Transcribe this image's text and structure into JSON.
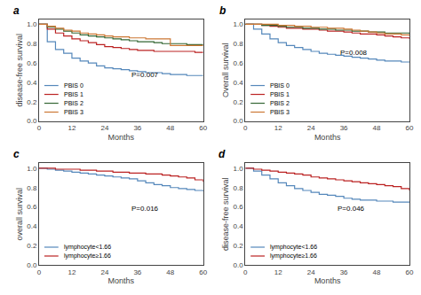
{
  "chart_data": [
    {
      "type": "step",
      "title": "a",
      "xlabel": "Months",
      "ylabel": "disease-free survival",
      "x": [
        0,
        3,
        6,
        9,
        12,
        15,
        18,
        21,
        24,
        27,
        30,
        33,
        36,
        39,
        42,
        45,
        48,
        51,
        54,
        57,
        60
      ],
      "series": [
        {
          "name": "PBIS 0",
          "color": "#5588BB",
          "values": [
            1.0,
            0.82,
            0.74,
            0.7,
            0.65,
            0.62,
            0.6,
            0.57,
            0.55,
            0.54,
            0.53,
            0.52,
            0.51,
            0.5,
            0.5,
            0.49,
            0.48,
            0.48,
            0.47,
            0.47,
            0.47
          ]
        },
        {
          "name": "PBIS 1",
          "color": "#BB2222",
          "values": [
            1.0,
            0.95,
            0.91,
            0.88,
            0.85,
            0.83,
            0.81,
            0.79,
            0.77,
            0.76,
            0.75,
            0.74,
            0.73,
            0.73,
            0.72,
            0.72,
            0.72,
            0.72,
            0.72,
            0.71,
            0.71
          ]
        },
        {
          "name": "PBIS 2",
          "color": "#336633",
          "values": [
            1.0,
            0.97,
            0.95,
            0.93,
            0.91,
            0.89,
            0.88,
            0.87,
            0.86,
            0.85,
            0.84,
            0.83,
            0.82,
            0.82,
            0.81,
            0.8,
            0.8,
            0.8,
            0.79,
            0.79,
            0.79
          ]
        },
        {
          "name": "PBIS 3",
          "color": "#CC7733",
          "values": [
            1.0,
            0.98,
            0.96,
            0.94,
            0.93,
            0.91,
            0.9,
            0.89,
            0.88,
            0.87,
            0.87,
            0.86,
            0.86,
            0.85,
            0.85,
            0.85,
            0.78,
            0.78,
            0.78,
            0.78,
            0.78
          ]
        }
      ],
      "xlim": [
        0,
        60
      ],
      "ylim": [
        0.0,
        1.05
      ],
      "xticks": [
        0,
        12,
        24,
        36,
        48,
        60
      ],
      "yticks": [
        {
          "value": 0,
          "label": "0.0"
        },
        0.2,
        0.4,
        0.6,
        0.8,
        {
          "value": 1,
          "label": "1.0"
        }
      ],
      "grid": false,
      "legend": "lower left",
      "annotations": [
        {
          "text": "P=0.007",
          "x": 33,
          "y": 0.42
        }
      ]
    },
    {
      "type": "step",
      "title": "b",
      "xlabel": "Months",
      "ylabel": "Overall survival",
      "x": [
        0,
        3,
        6,
        9,
        12,
        15,
        18,
        21,
        24,
        27,
        30,
        33,
        36,
        39,
        42,
        45,
        48,
        51,
        54,
        57,
        60
      ],
      "series": [
        {
          "name": "PBIS 0",
          "color": "#5588BB",
          "values": [
            1.0,
            0.95,
            0.9,
            0.85,
            0.81,
            0.78,
            0.76,
            0.74,
            0.72,
            0.7,
            0.69,
            0.68,
            0.67,
            0.66,
            0.65,
            0.64,
            0.63,
            0.62,
            0.62,
            0.61,
            0.61
          ]
        },
        {
          "name": "PBIS 1",
          "color": "#BB2222",
          "values": [
            1.0,
            1.0,
            0.99,
            0.98,
            0.97,
            0.96,
            0.96,
            0.95,
            0.95,
            0.94,
            0.93,
            0.93,
            0.92,
            0.91,
            0.9,
            0.9,
            0.89,
            0.88,
            0.87,
            0.86,
            0.85
          ]
        },
        {
          "name": "PBIS 2",
          "color": "#336633",
          "values": [
            1.0,
            1.0,
            0.99,
            0.99,
            0.98,
            0.97,
            0.97,
            0.96,
            0.96,
            0.95,
            0.95,
            0.94,
            0.94,
            0.93,
            0.93,
            0.92,
            0.92,
            0.91,
            0.91,
            0.91,
            0.9
          ]
        },
        {
          "name": "PBIS 3",
          "color": "#CC7733",
          "values": [
            1.0,
            1.0,
            1.0,
            1.0,
            0.99,
            0.99,
            0.98,
            0.98,
            0.97,
            0.97,
            0.96,
            0.96,
            0.95,
            0.94,
            0.93,
            0.92,
            0.91,
            0.9,
            0.9,
            0.89,
            0.88
          ]
        }
      ],
      "xlim": [
        0,
        60
      ],
      "ylim": [
        0.0,
        1.05
      ],
      "xticks": [
        0,
        12,
        24,
        36,
        48,
        60
      ],
      "yticks": [
        {
          "value": 0,
          "label": "0.0"
        },
        0.2,
        0.4,
        0.6,
        0.8,
        {
          "value": 1,
          "label": "1.0"
        }
      ],
      "grid": false,
      "legend": "lower left",
      "annotations": [
        {
          "text": "P=0.008",
          "x": 34,
          "y": 0.65
        }
      ]
    },
    {
      "type": "step",
      "title": "c",
      "xlabel": "Months",
      "ylabel": "overall survival",
      "x": [
        0,
        3,
        6,
        9,
        12,
        15,
        18,
        21,
        24,
        27,
        30,
        33,
        36,
        39,
        42,
        45,
        48,
        51,
        54,
        57,
        60
      ],
      "series": [
        {
          "name": "lymphocyte<1.66",
          "color": "#5588BB",
          "values": [
            1.0,
            0.99,
            0.98,
            0.97,
            0.96,
            0.95,
            0.94,
            0.93,
            0.92,
            0.91,
            0.9,
            0.89,
            0.87,
            0.85,
            0.83,
            0.82,
            0.8,
            0.79,
            0.78,
            0.77,
            0.76
          ]
        },
        {
          "name": "lymphocyte≥1.66",
          "color": "#BB2222",
          "values": [
            1.0,
            1.0,
            0.99,
            0.99,
            0.99,
            0.98,
            0.98,
            0.97,
            0.97,
            0.96,
            0.96,
            0.95,
            0.95,
            0.94,
            0.94,
            0.93,
            0.92,
            0.91,
            0.9,
            0.88,
            0.86
          ]
        }
      ],
      "xlim": [
        0,
        60
      ],
      "ylim": [
        0.0,
        1.05
      ],
      "xticks": [
        0,
        12,
        24,
        36,
        48,
        60
      ],
      "yticks": [
        {
          "value": 0,
          "label": "0.0"
        },
        0.2,
        0.4,
        0.6,
        0.8,
        {
          "value": 1,
          "label": "1.0"
        }
      ],
      "grid": false,
      "legend": "lower left",
      "annotations": [
        {
          "text": "P=0.016",
          "x": 33,
          "y": 0.52
        }
      ]
    },
    {
      "type": "step",
      "title": "d",
      "xlabel": "Months",
      "ylabel": "disease-free survival",
      "x": [
        0,
        3,
        6,
        9,
        12,
        15,
        18,
        21,
        24,
        27,
        30,
        33,
        36,
        39,
        42,
        45,
        48,
        51,
        54,
        57,
        60
      ],
      "series": [
        {
          "name": "lymphocyte<1.66",
          "color": "#5588BB",
          "values": [
            1.0,
            0.97,
            0.93,
            0.89,
            0.85,
            0.82,
            0.79,
            0.77,
            0.75,
            0.73,
            0.72,
            0.71,
            0.69,
            0.68,
            0.67,
            0.67,
            0.66,
            0.66,
            0.65,
            0.65,
            0.65
          ]
        },
        {
          "name": "lymphocyte≥1.66",
          "color": "#BB2222",
          "values": [
            1.0,
            0.99,
            0.98,
            0.97,
            0.96,
            0.95,
            0.94,
            0.93,
            0.91,
            0.9,
            0.89,
            0.88,
            0.87,
            0.86,
            0.85,
            0.84,
            0.83,
            0.82,
            0.81,
            0.79,
            0.77
          ]
        }
      ],
      "xlim": [
        0,
        60
      ],
      "ylim": [
        0.0,
        1.05
      ],
      "xticks": [
        0,
        12,
        24,
        36,
        48,
        60
      ],
      "yticks": [
        {
          "value": 0,
          "label": "0.0"
        },
        0.2,
        0.4,
        0.6,
        0.8,
        {
          "value": 1,
          "label": "1.0"
        }
      ],
      "grid": false,
      "legend": "lower left",
      "annotations": [
        {
          "text": "P=0.046",
          "x": 33,
          "y": 0.52
        }
      ]
    }
  ]
}
